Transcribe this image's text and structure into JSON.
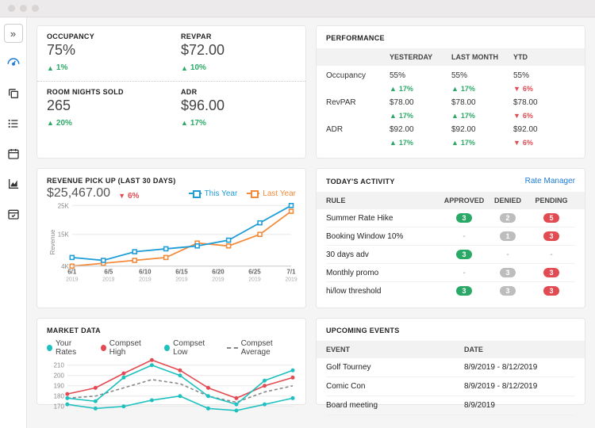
{
  "colors": {
    "green": "#2aa966",
    "red": "#e24b52",
    "blue": "#1e7bd6",
    "teal": "#1fc0c0",
    "orange": "#f38b3c",
    "grid": "#e8e8e8"
  },
  "kpi": {
    "occupancy": {
      "label": "OCCUPANCY",
      "value": "75%",
      "delta": "1%",
      "dir": "up"
    },
    "revpar": {
      "label": "REVPAR",
      "value": "$72.00",
      "delta": "10%",
      "dir": "up"
    },
    "rns": {
      "label": "ROOM NIGHTS SOLD",
      "value": "265",
      "delta": "20%",
      "dir": "up"
    },
    "adr": {
      "label": "ADR",
      "value": "$96.00",
      "delta": "17%",
      "dir": "up"
    }
  },
  "performance": {
    "title": "PERFORMANCE",
    "cols": [
      "",
      "YESTERDAY",
      "LAST MONTH",
      "YTD"
    ],
    "rows": [
      {
        "metric": "Occupancy",
        "cells": [
          {
            "v": "55%",
            "d": "17%",
            "dir": "up"
          },
          {
            "v": "55%",
            "d": "17%",
            "dir": "up"
          },
          {
            "v": "55%",
            "d": "6%",
            "dir": "down"
          }
        ]
      },
      {
        "metric": "RevPAR",
        "cells": [
          {
            "v": "$78.00",
            "d": "17%",
            "dir": "up"
          },
          {
            "v": "$78.00",
            "d": "17%",
            "dir": "up"
          },
          {
            "v": "$78.00",
            "d": "6%",
            "dir": "down"
          }
        ]
      },
      {
        "metric": "ADR",
        "cells": [
          {
            "v": "$92.00",
            "d": "17%",
            "dir": "up"
          },
          {
            "v": "$92.00",
            "d": "17%",
            "dir": "up"
          },
          {
            "v": "$92.00",
            "d": "6%",
            "dir": "down"
          }
        ]
      }
    ]
  },
  "revenue": {
    "title": "REVENUE PICK UP (LAST 30 DAYS)",
    "amount": "$25,467.00",
    "delta": "6%",
    "dir": "down",
    "legend": {
      "this": "This Year",
      "last": "Last Year"
    },
    "ylabel": "Revenue",
    "yticks": [
      "4K",
      "15K",
      "25K"
    ],
    "xticks": [
      "6/1\n2019",
      "6/5\n2019",
      "6/10\n2019",
      "6/15\n2019",
      "6/20\n2019",
      "6/25\n2019",
      "7/1\n2019"
    ],
    "this_year": [
      7,
      6,
      9,
      10,
      11,
      13,
      19,
      25
    ],
    "last_year": [
      4,
      5,
      6,
      7,
      12,
      11,
      15,
      23
    ],
    "y_min": 4,
    "y_max": 25,
    "color_this": "#1e9dd8",
    "color_last": "#f38b3c"
  },
  "activity": {
    "title": "TODAY'S ACTIVITY",
    "link": "Rate Manager",
    "cols": [
      "RULE",
      "APPROVED",
      "DENIED",
      "PENDING"
    ],
    "rows": [
      {
        "rule": "Summer Rate Hike",
        "approved": "3",
        "denied": "2",
        "pending": "5"
      },
      {
        "rule": "Booking Window 10%",
        "approved": "-",
        "denied": "1",
        "pending": "3"
      },
      {
        "rule": "30 days adv",
        "approved": "3",
        "denied": "-",
        "pending": "-"
      },
      {
        "rule": "Monthly promo",
        "approved": "-",
        "denied": "3",
        "pending": "3"
      },
      {
        "rule": "hi/low threshold",
        "approved": "3",
        "denied": "3",
        "pending": "3"
      }
    ]
  },
  "events": {
    "title": "UPCOMING EVENTS",
    "cols": [
      "EVENT",
      "DATE"
    ],
    "rows": [
      {
        "event": "Golf Tourney",
        "date": "8/9/2019 - 8/12/2019"
      },
      {
        "event": "Comic Con",
        "date": "8/9/2019 - 8/12/2019"
      },
      {
        "event": "Board meeting",
        "date": "8/9/2019"
      }
    ]
  },
  "market": {
    "title": "MARKET DATA",
    "legend": {
      "your": "Your Rates",
      "high": "Compset High",
      "low": "Compset Low",
      "avg": "Compset Average"
    },
    "yticks": [
      "170",
      "180",
      "190",
      "200",
      "210"
    ],
    "y_min": 160,
    "y_max": 215,
    "your": [
      178,
      175,
      198,
      210,
      200,
      180,
      172,
      195,
      205
    ],
    "high": [
      182,
      188,
      202,
      215,
      205,
      188,
      178,
      190,
      198
    ],
    "low": [
      172,
      168,
      170,
      176,
      180,
      168,
      166,
      172,
      178
    ],
    "avg": [
      178,
      180,
      188,
      196,
      192,
      180,
      174,
      184,
      190
    ],
    "color_your": "#1fc0c0",
    "color_high": "#e24b52",
    "color_low": "#1fc0c0",
    "color_avg": "#888888"
  }
}
